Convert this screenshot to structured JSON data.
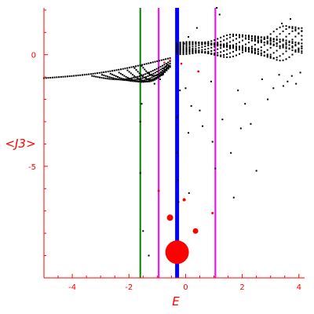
{
  "chart_data": {
    "type": "scatter",
    "title": "",
    "xlabel": "E",
    "ylabel": "<J3>",
    "xlim": [
      -5,
      4.2
    ],
    "ylim": [
      -10,
      2.1
    ],
    "x_ticks": [
      -4,
      -2,
      0,
      2,
      4
    ],
    "x_tick_labels": [
      "-4",
      "-2",
      "0",
      "2",
      "4"
    ],
    "y_ticks": [
      0,
      -5
    ],
    "y_tick_labels": [
      "0",
      "-5"
    ],
    "grid": false,
    "legend": "none",
    "colors": {
      "axes": "#ff0000",
      "points": "#000000",
      "highlight_points": "#ff0000",
      "green_line": "#008000",
      "magenta_line": "#ff00ff",
      "blue_line": "#0000ff"
    },
    "vertical_lines": [
      {
        "x": -1.6,
        "color": "#008000",
        "style": "thin"
      },
      {
        "x": -0.95,
        "color": "#ff00ff",
        "style": "thin"
      },
      {
        "x": -0.3,
        "color": "#0000ff",
        "style": "thick"
      },
      {
        "x": 1.05,
        "color": "#ff00ff",
        "style": "thin"
      }
    ],
    "series": [
      {
        "family": "band",
        "color": "#000000",
        "curves": [
          {
            "x0": -5.0,
            "y0": -1.05,
            "x1": -0.55,
            "y1": -0.15,
            "n": 60,
            "curvature": 0.9
          },
          {
            "x0": -3.3,
            "y0": -0.95,
            "x1": -0.55,
            "y1": -0.3,
            "n": 42,
            "curvature": 2.4
          },
          {
            "x0": -2.95,
            "y0": -0.9,
            "x1": -0.55,
            "y1": -0.4,
            "n": 38,
            "curvature": 2.6
          },
          {
            "x0": -2.65,
            "y0": -0.85,
            "x1": -0.55,
            "y1": -0.5,
            "n": 34,
            "curvature": 2.8
          },
          {
            "x0": -2.35,
            "y0": -0.8,
            "x1": -0.55,
            "y1": -0.55,
            "n": 30,
            "curvature": 3.0
          },
          {
            "x0": -2.05,
            "y0": -0.7,
            "x1": -0.55,
            "y1": -0.55,
            "n": 26,
            "curvature": 3.2
          },
          {
            "x0": -1.8,
            "y0": -0.6,
            "x1": -0.6,
            "y1": -0.5,
            "n": 22,
            "curvature": 3.2
          },
          {
            "x0": -1.55,
            "y0": -0.5,
            "x1": -0.65,
            "y1": -0.45,
            "n": 18,
            "curvature": 2.6
          }
        ],
        "grid": {
          "x0": -0.3,
          "x1": 4.2,
          "rows": [
            0.05,
            0.15,
            0.25,
            0.35,
            0.45,
            0.55,
            0.65,
            0.75,
            0.85,
            0.95,
            1.05
          ],
          "amp": 0.38,
          "step": 0.11
        }
      },
      {
        "name": "",
        "color": "#000000",
        "values": [
          {
            "x": -1.6,
            "y": -3.0
          },
          {
            "x": -1.6,
            "y": -5.3
          },
          {
            "x": -1.55,
            "y": -2.2
          },
          {
            "x": -1.5,
            "y": -7.9
          },
          {
            "x": -1.3,
            "y": -9.0
          },
          {
            "x": -1.1,
            "y": -1.3
          },
          {
            "x": -0.9,
            "y": -1.1
          },
          {
            "x": -0.8,
            "y": -0.9
          },
          {
            "x": -0.3,
            "y": -2.8
          },
          {
            "x": -0.3,
            "y": -4.4
          },
          {
            "x": -0.28,
            "y": -5.6
          },
          {
            "x": -0.25,
            "y": -6.6
          },
          {
            "x": -0.2,
            "y": -1.6
          },
          {
            "x": 0.0,
            "y": -1.5
          },
          {
            "x": 0.1,
            "y": -3.5
          },
          {
            "x": 0.12,
            "y": -6.2
          },
          {
            "x": 0.2,
            "y": -2.3
          },
          {
            "x": 0.5,
            "y": -2.5
          },
          {
            "x": 0.6,
            "y": -3.2
          },
          {
            "x": 0.9,
            "y": -1.2
          },
          {
            "x": 0.95,
            "y": -3.9
          },
          {
            "x": 1.05,
            "y": -5.1
          },
          {
            "x": 1.3,
            "y": -2.9
          },
          {
            "x": 1.6,
            "y": -4.4
          },
          {
            "x": 1.7,
            "y": -6.4
          },
          {
            "x": 1.85,
            "y": -1.6
          },
          {
            "x": 1.95,
            "y": -3.3
          },
          {
            "x": 2.1,
            "y": -2.2
          },
          {
            "x": 2.3,
            "y": -3.1
          },
          {
            "x": 2.5,
            "y": -5.2
          },
          {
            "x": 2.7,
            "y": -1.1
          },
          {
            "x": 2.9,
            "y": -2.0
          },
          {
            "x": 3.1,
            "y": -1.5
          },
          {
            "x": 3.3,
            "y": -0.9
          },
          {
            "x": 3.45,
            "y": -1.4
          },
          {
            "x": 3.6,
            "y": -1.2
          },
          {
            "x": 3.75,
            "y": -0.95
          },
          {
            "x": 3.9,
            "y": -1.3
          },
          {
            "x": 4.05,
            "y": -0.8
          },
          {
            "x": -0.05,
            "y": 0.5
          },
          {
            "x": 0.1,
            "y": 0.8
          },
          {
            "x": 0.4,
            "y": 1.2
          },
          {
            "x": 1.2,
            "y": 1.8
          },
          {
            "x": 1.1,
            "y": 2.1
          },
          {
            "x": 3.4,
            "y": 1.4
          },
          {
            "x": 3.7,
            "y": 1.6
          }
        ]
      },
      {
        "name": "",
        "color": "#ff0000",
        "values": [
          {
            "x": -0.3,
            "y": -8.85,
            "size": 15
          },
          {
            "x": -0.55,
            "y": -7.3,
            "size": 4
          },
          {
            "x": 0.35,
            "y": -7.9,
            "size": 3.5
          },
          {
            "x": -0.05,
            "y": -6.5,
            "size": 2
          },
          {
            "x": -0.95,
            "y": -6.1,
            "size": 1.5
          },
          {
            "x": 0.95,
            "y": -7.1,
            "size": 1.5
          },
          {
            "x": 0.45,
            "y": -0.75,
            "size": 1.4
          },
          {
            "x": -0.15,
            "y": -0.4,
            "size": 1.3
          },
          {
            "x": -0.55,
            "y": -0.25,
            "size": 1.2
          },
          {
            "x": -0.75,
            "y": -0.35,
            "size": 1.2
          }
        ]
      }
    ]
  }
}
